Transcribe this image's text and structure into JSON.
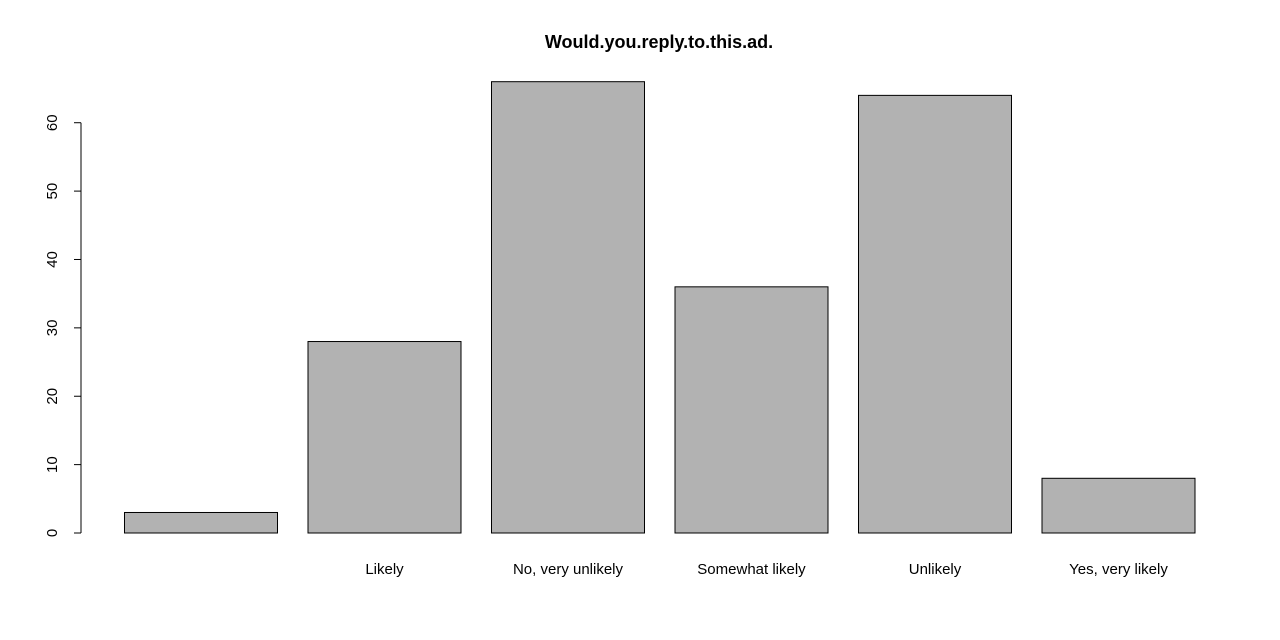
{
  "chart_data": {
    "type": "bar",
    "title": "Would.you.reply.to.this.ad.",
    "xlabel": "",
    "ylabel": "",
    "categories": [
      "",
      "Likely",
      "No, very unlikely",
      "Somewhat likely",
      "Unlikely",
      "Yes, very likely"
    ],
    "values": [
      3,
      28,
      66,
      36,
      64,
      8
    ],
    "ylim": [
      0,
      66
    ],
    "yticks": [
      0,
      10,
      20,
      30,
      40,
      50,
      60
    ],
    "grid": false,
    "bar_color": "#b2b2b2"
  }
}
